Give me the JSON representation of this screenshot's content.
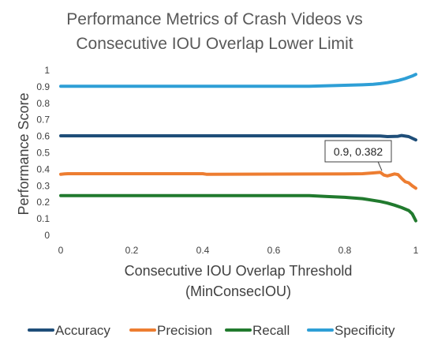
{
  "chart_data": {
    "type": "line",
    "title_lines": [
      "Performance Metrics of Crash Videos vs",
      "Consecutive IOU Overlap Lower Limit"
    ],
    "xlabel_lines": [
      "Consecutive IOU Overlap Threshold",
      "(MinConsecIOU)"
    ],
    "ylabel": "Performance Score",
    "xlim": [
      0,
      1
    ],
    "ylim": [
      0,
      1
    ],
    "x_ticks": [
      {
        "value": 0,
        "label": "0"
      },
      {
        "value": 0.2,
        "label": "0.2"
      },
      {
        "value": 0.4,
        "label": "0.4"
      },
      {
        "value": 0.6,
        "label": "0.6"
      },
      {
        "value": 0.8,
        "label": "0.8"
      },
      {
        "value": 1,
        "label": "1"
      }
    ],
    "y_ticks": [
      {
        "value": 0,
        "label": "0"
      },
      {
        "value": 0.1,
        "label": "0.1"
      },
      {
        "value": 0.2,
        "label": "0.2"
      },
      {
        "value": 0.3,
        "label": "0.3"
      },
      {
        "value": 0.4,
        "label": "0.4"
      },
      {
        "value": 0.5,
        "label": "0.5"
      },
      {
        "value": 0.6,
        "label": "0.6"
      },
      {
        "value": 0.7,
        "label": "0.7"
      },
      {
        "value": 0.8,
        "label": "0.8"
      },
      {
        "value": 0.9,
        "label": "0.9"
      },
      {
        "value": 1,
        "label": "1"
      }
    ],
    "grid": false,
    "legend_position": "bottom",
    "series": [
      {
        "name": "Accuracy",
        "color": "#1f4e79",
        "x": [
          0,
          0.2,
          0.4,
          0.6,
          0.8,
          0.9,
          0.92,
          0.95,
          0.96,
          0.98,
          1
        ],
        "y": [
          0.603,
          0.603,
          0.603,
          0.603,
          0.603,
          0.602,
          0.598,
          0.6,
          0.605,
          0.598,
          0.578
        ]
      },
      {
        "name": "Precision",
        "color": "#ed7d31",
        "x": [
          0,
          0.01,
          0.02,
          0.4,
          0.41,
          0.8,
          0.85,
          0.88,
          0.9,
          0.91,
          0.92,
          0.94,
          0.95,
          0.96,
          0.97,
          0.98,
          0.99,
          1
        ],
        "y": [
          0.37,
          0.372,
          0.373,
          0.373,
          0.37,
          0.372,
          0.373,
          0.378,
          0.382,
          0.365,
          0.36,
          0.372,
          0.368,
          0.345,
          0.325,
          0.318,
          0.3,
          0.285
        ]
      },
      {
        "name": "Recall",
        "color": "#217a2e",
        "x": [
          0,
          0.2,
          0.4,
          0.6,
          0.7,
          0.75,
          0.8,
          0.85,
          0.9,
          0.92,
          0.94,
          0.96,
          0.98,
          0.99,
          1
        ],
        "y": [
          0.24,
          0.24,
          0.24,
          0.24,
          0.24,
          0.235,
          0.23,
          0.222,
          0.205,
          0.195,
          0.183,
          0.168,
          0.15,
          0.13,
          0.088
        ]
      },
      {
        "name": "Specificity",
        "color": "#2e9fd6",
        "x": [
          0,
          0.2,
          0.4,
          0.6,
          0.7,
          0.75,
          0.8,
          0.85,
          0.88,
          0.9,
          0.92,
          0.95,
          0.97,
          0.99,
          1
        ],
        "y": [
          0.903,
          0.903,
          0.903,
          0.903,
          0.903,
          0.906,
          0.909,
          0.912,
          0.915,
          0.919,
          0.925,
          0.938,
          0.95,
          0.965,
          0.975
        ]
      }
    ],
    "annotations": [
      {
        "text": "0.9, 0.382",
        "x": 0.9,
        "y": 0.382,
        "series": "Precision"
      }
    ]
  }
}
